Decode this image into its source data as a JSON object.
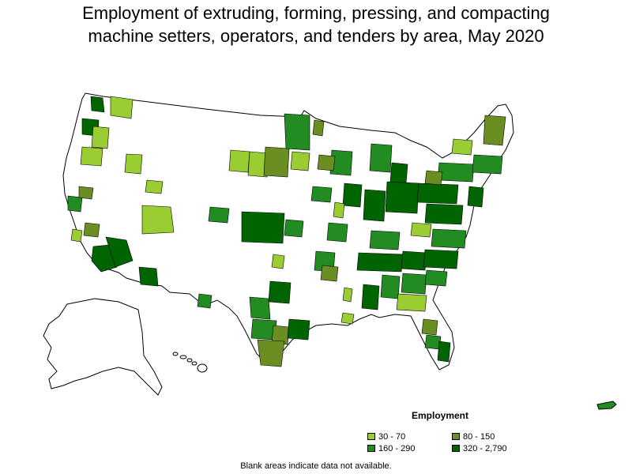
{
  "title": {
    "line1": "Employment of extruding, forming, pressing, and compacting",
    "line2": "machine setters, operators, and tenders by area, May 2020"
  },
  "legend": {
    "title": "Employment",
    "items": [
      {
        "label": "30 - 70",
        "color": "#9acd32"
      },
      {
        "label": "80 - 150",
        "color": "#6b8e23"
      },
      {
        "label": "160 - 290",
        "color": "#228b22"
      },
      {
        "label": "320 - 2,790",
        "color": "#006400"
      }
    ]
  },
  "footnote": "Blank areas indicate data not available.",
  "colors": {
    "blank": "#ffffff",
    "border": "#000000",
    "c1": "#9acd32",
    "c2": "#6b8e23",
    "c3": "#228b22",
    "c4": "#006400"
  }
}
